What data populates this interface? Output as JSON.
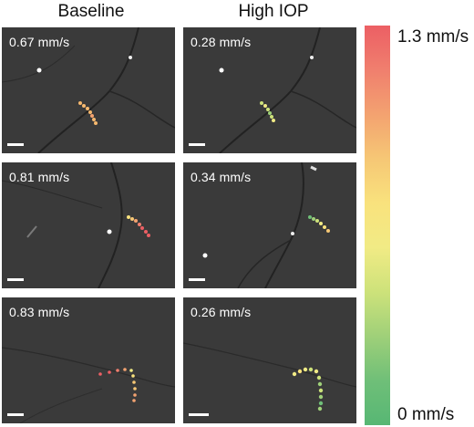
{
  "columns": {
    "baseline": "Baseline",
    "high_iop": "High IOP"
  },
  "panels": [
    {
      "row": 1,
      "column": "baseline",
      "speed": "0.67 mm/s"
    },
    {
      "row": 1,
      "column": "high_iop",
      "speed": "0.28 mm/s"
    },
    {
      "row": 2,
      "column": "baseline",
      "speed": "0.81 mm/s"
    },
    {
      "row": 2,
      "column": "high_iop",
      "speed": "0.34 mm/s"
    },
    {
      "row": 3,
      "column": "baseline",
      "speed": "0.83 mm/s"
    },
    {
      "row": 3,
      "column": "high_iop",
      "speed": "0.26 mm/s"
    }
  ],
  "colorbar": {
    "max_label": "1.3 mm/s",
    "min_label": "0 mm/s",
    "colors": [
      "#ec5f64",
      "#f07f6e",
      "#f3a270",
      "#f6c775",
      "#f9e27d",
      "#f1eb85",
      "#cde27a",
      "#9fd079",
      "#6fbf78",
      "#57b774"
    ]
  }
}
